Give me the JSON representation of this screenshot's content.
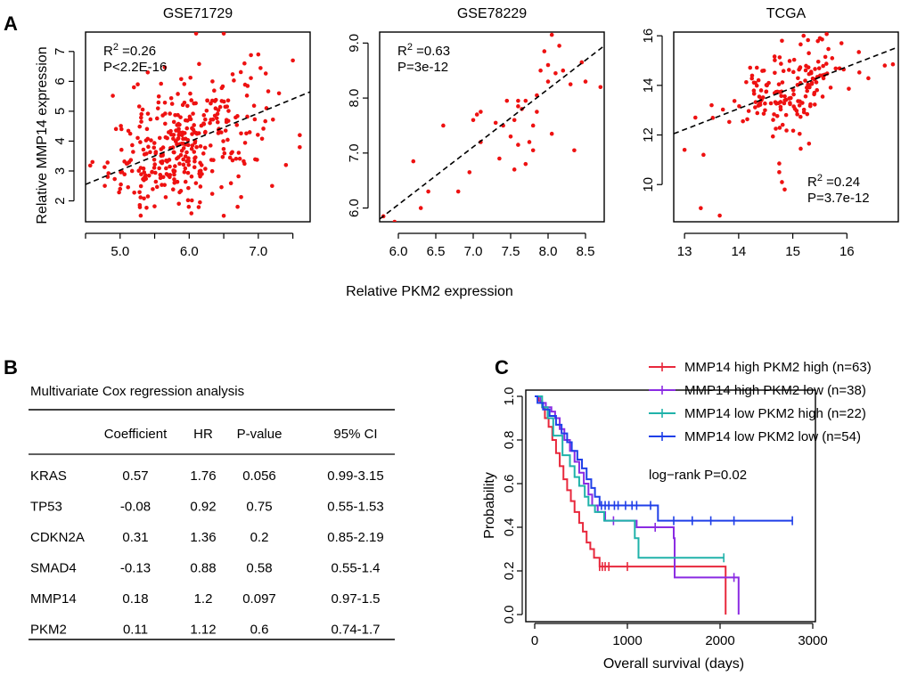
{
  "panel_labels": [
    "A",
    "B",
    "C"
  ],
  "panel_a": {
    "ylabel": "Relative MMP14 expression",
    "xlabel": "Relative PKM2 expression"
  },
  "chart_data": [
    {
      "type": "scatter",
      "title": "GSE71729",
      "xlabel": "Relative PKM2 expression",
      "ylabel": "Relative MMP14 expression",
      "xlim": [
        4.5,
        7.75
      ],
      "ylim": [
        1.3,
        7.65
      ],
      "xticks": [
        5.0,
        6.0,
        7.0
      ],
      "xtick_labels": [
        "5.0",
        "6.0",
        "7.0"
      ],
      "xticks_minor": [
        4.5,
        5.0,
        5.5,
        6.0,
        6.5,
        7.0,
        7.5
      ],
      "yticks": [
        2,
        3,
        4,
        5,
        6,
        7
      ],
      "ytick_labels": [
        "2",
        "3",
        "4",
        "5",
        "6",
        "7"
      ],
      "annotation_lines": [
        "R2 =0.26",
        "P<2.2E-16"
      ],
      "annotation_position": "top-left",
      "fit_line": {
        "x": [
          4.5,
          7.75
        ],
        "y": [
          2.55,
          5.65
        ]
      },
      "n_points": 357,
      "x_center": 5.95,
      "x_spread": 0.55,
      "y_spread": 0.95,
      "points": [
        [
          4.6,
          3.3
        ],
        [
          5.0,
          2.4
        ],
        [
          5.2,
          5.8
        ],
        [
          5.4,
          6.3
        ],
        [
          6.5,
          1.5
        ],
        [
          6.7,
          1.8
        ],
        [
          7.2,
          2.5
        ],
        [
          7.4,
          3.2
        ],
        [
          7.6,
          4.2
        ],
        [
          7.5,
          6.7
        ],
        [
          6.1,
          7.6
        ],
        [
          6.5,
          7.6
        ],
        [
          7.0,
          6.9
        ],
        [
          6.8,
          6.6
        ],
        [
          7.3,
          5.6
        ]
      ]
    },
    {
      "type": "scatter",
      "title": "GSE78229",
      "xlabel": "Relative PKM2 expression",
      "ylabel": "Relative MMP14 expression",
      "xlim": [
        5.75,
        8.75
      ],
      "ylim": [
        5.75,
        9.2
      ],
      "xticks": [
        6.0,
        6.5,
        7.0,
        7.5,
        8.0,
        8.5
      ],
      "xtick_labels": [
        "6.0",
        "6.5",
        "7.0",
        "7.5",
        "8.0",
        "8.5"
      ],
      "yticks": [
        6.0,
        7.0,
        8.0,
        9.0
      ],
      "ytick_labels": [
        "6.0",
        "7.0",
        "8.0",
        "9.0"
      ],
      "annotation_lines": [
        "R2 =0.63",
        "P=3e-12"
      ],
      "annotation_position": "top-left",
      "fit_line": {
        "x": [
          5.75,
          8.75
        ],
        "y": [
          5.8,
          8.95
        ]
      },
      "points": [
        [
          5.8,
          5.85
        ],
        [
          5.95,
          5.75
        ],
        [
          6.2,
          6.85
        ],
        [
          6.3,
          6.0
        ],
        [
          6.4,
          6.3
        ],
        [
          6.6,
          7.5
        ],
        [
          6.8,
          6.3
        ],
        [
          6.95,
          6.65
        ],
        [
          7.0,
          7.6
        ],
        [
          7.05,
          7.7
        ],
        [
          7.1,
          7.75
        ],
        [
          7.1,
          7.2
        ],
        [
          7.3,
          7.55
        ],
        [
          7.4,
          7.5
        ],
        [
          7.45,
          7.95
        ],
        [
          7.5,
          7.3
        ],
        [
          7.55,
          6.7
        ],
        [
          7.6,
          7.85
        ],
        [
          7.6,
          7.15
        ],
        [
          7.65,
          7.8
        ],
        [
          7.7,
          7.95
        ],
        [
          7.7,
          6.8
        ],
        [
          7.75,
          7.2
        ],
        [
          7.8,
          7.5
        ],
        [
          7.85,
          8.05
        ],
        [
          7.9,
          8.5
        ],
        [
          7.95,
          8.85
        ],
        [
          8.0,
          8.6
        ],
        [
          8.0,
          8.3
        ],
        [
          8.05,
          9.15
        ],
        [
          8.05,
          7.35
        ],
        [
          8.1,
          8.45
        ],
        [
          8.15,
          8.95
        ],
        [
          8.2,
          8.5
        ],
        [
          8.3,
          8.25
        ],
        [
          8.35,
          7.05
        ],
        [
          8.45,
          8.65
        ],
        [
          8.5,
          8.3
        ],
        [
          8.7,
          8.2
        ],
        [
          7.85,
          7.75
        ],
        [
          7.55,
          7.6
        ],
        [
          7.35,
          6.9
        ],
        [
          7.8,
          7.05
        ],
        [
          7.6,
          7.95
        ]
      ]
    },
    {
      "type": "scatter",
      "title": "TCGA",
      "xlabel": "Relative PKM2 expression",
      "ylabel": "Relative MMP14 expression",
      "xlim": [
        12.8,
        16.95
      ],
      "ylim": [
        8.5,
        16.15
      ],
      "xticks": [
        13,
        14,
        15,
        16
      ],
      "xtick_labels": [
        "13",
        "14",
        "15",
        "16"
      ],
      "yticks": [
        10,
        12,
        14,
        16
      ],
      "ytick_labels": [
        "10",
        "12",
        "14",
        "16"
      ],
      "annotation_lines": [
        "R2 =0.24",
        "P=3.7e-12"
      ],
      "annotation_position": "bottom-right",
      "fit_line": {
        "x": [
          12.8,
          16.95
        ],
        "y": [
          12.05,
          15.55
        ]
      },
      "n_points": 178,
      "x_center": 15.0,
      "x_spread": 0.55,
      "y_spread": 0.8,
      "points": [
        [
          13.0,
          11.4
        ],
        [
          13.35,
          11.2
        ],
        [
          13.3,
          9.05
        ],
        [
          13.65,
          8.75
        ],
        [
          14.75,
          10.5
        ],
        [
          14.8,
          10.1
        ],
        [
          14.85,
          9.8
        ],
        [
          14.75,
          10.85
        ],
        [
          15.3,
          11.65
        ],
        [
          13.2,
          12.7
        ],
        [
          13.5,
          13.2
        ],
        [
          16.7,
          14.8
        ],
        [
          16.85,
          14.85
        ],
        [
          15.9,
          15.7
        ],
        [
          15.5,
          15.9
        ],
        [
          15.2,
          16.0
        ],
        [
          14.8,
          15.8
        ]
      ]
    }
  ],
  "table_b": {
    "title": "Multivariate Cox regression analysis",
    "columns": [
      "",
      "Coefficient",
      "HR",
      "P-value",
      "95% CI"
    ],
    "rows": [
      [
        "KRAS",
        "0.57",
        "1.76",
        "0.056",
        "0.99-3.15"
      ],
      [
        "TP53",
        "-0.08",
        "0.92",
        "0.75",
        "0.55-1.53"
      ],
      [
        "CDKN2A",
        "0.31",
        "1.36",
        "0.2",
        "0.85-2.19"
      ],
      [
        "SMAD4",
        "-0.13",
        "0.88",
        "0.58",
        "0.55-1.4"
      ],
      [
        "MMP14",
        "0.18",
        "1.2",
        "0.097",
        "0.97-1.5"
      ],
      [
        "PKM2",
        "0.11",
        "1.12",
        "0.6",
        "0.74-1.7"
      ]
    ]
  },
  "survival_chart": {
    "type": "line",
    "title": "",
    "xlabel": "Overall survival (days)",
    "ylabel": "Probability",
    "xlim": [
      0,
      3000
    ],
    "ylim": [
      0,
      1.0
    ],
    "xticks": [
      0,
      1000,
      2000,
      3000
    ],
    "xtick_labels": [
      "0",
      "1000",
      "2000",
      "3000"
    ],
    "yticks": [
      0.0,
      0.2,
      0.4,
      0.6,
      0.8,
      1.0
    ],
    "ytick_labels": [
      "0.0",
      "0.2",
      "0.4",
      "0.6",
      "0.8",
      "1.0"
    ],
    "annotation": "log−rank P=0.02",
    "legend_position": "top-right",
    "series": [
      {
        "name": "MMP14 high PKM2 high (n=63)",
        "color": "#e8283c",
        "steps": [
          [
            0,
            1.0
          ],
          [
            40,
            0.98
          ],
          [
            80,
            0.95
          ],
          [
            110,
            0.9
          ],
          [
            150,
            0.86
          ],
          [
            190,
            0.8
          ],
          [
            230,
            0.74
          ],
          [
            270,
            0.68
          ],
          [
            310,
            0.62
          ],
          [
            350,
            0.57
          ],
          [
            390,
            0.52
          ],
          [
            430,
            0.47
          ],
          [
            480,
            0.42
          ],
          [
            520,
            0.38
          ],
          [
            560,
            0.33
          ],
          [
            600,
            0.3
          ],
          [
            640,
            0.26
          ],
          [
            700,
            0.22
          ],
          [
            2060,
            0.0
          ]
        ],
        "censors": [
          [
            700,
            0.22
          ],
          [
            730,
            0.22
          ],
          [
            760,
            0.22
          ],
          [
            800,
            0.22
          ],
          [
            1000,
            0.22
          ]
        ]
      },
      {
        "name": "MMP14 high PKM2 low (n=38)",
        "color": "#8a2be2",
        "steps": [
          [
            0,
            1.0
          ],
          [
            60,
            0.97
          ],
          [
            120,
            0.95
          ],
          [
            180,
            0.93
          ],
          [
            220,
            0.9
          ],
          [
            270,
            0.85
          ],
          [
            320,
            0.8
          ],
          [
            380,
            0.75
          ],
          [
            430,
            0.7
          ],
          [
            480,
            0.65
          ],
          [
            530,
            0.6
          ],
          [
            580,
            0.55
          ],
          [
            620,
            0.5
          ],
          [
            680,
            0.47
          ],
          [
            760,
            0.43
          ],
          [
            1100,
            0.4
          ],
          [
            1500,
            0.35
          ],
          [
            1510,
            0.17
          ],
          [
            2200,
            0.0
          ]
        ],
        "censors": [
          [
            850,
            0.43
          ],
          [
            1300,
            0.4
          ],
          [
            2150,
            0.17
          ]
        ]
      },
      {
        "name": "MMP14 low PKM2 high (n=22)",
        "color": "#20b2aa",
        "steps": [
          [
            0,
            1.0
          ],
          [
            80,
            0.95
          ],
          [
            140,
            0.9
          ],
          [
            200,
            0.82
          ],
          [
            300,
            0.73
          ],
          [
            380,
            0.68
          ],
          [
            430,
            0.63
          ],
          [
            480,
            0.59
          ],
          [
            540,
            0.54
          ],
          [
            580,
            0.5
          ],
          [
            650,
            0.47
          ],
          [
            750,
            0.43
          ],
          [
            1080,
            0.35
          ],
          [
            1120,
            0.26
          ],
          [
            2040,
            0.26
          ]
        ],
        "censors": [
          [
            2040,
            0.26
          ]
        ]
      },
      {
        "name": "MMP14 low PKM2 low (n=54)",
        "color": "#1f3fe8",
        "steps": [
          [
            0,
            1.0
          ],
          [
            30,
            0.97
          ],
          [
            90,
            0.94
          ],
          [
            160,
            0.91
          ],
          [
            230,
            0.87
          ],
          [
            290,
            0.83
          ],
          [
            350,
            0.79
          ],
          [
            400,
            0.75
          ],
          [
            460,
            0.71
          ],
          [
            510,
            0.67
          ],
          [
            560,
            0.62
          ],
          [
            610,
            0.58
          ],
          [
            650,
            0.54
          ],
          [
            700,
            0.5
          ],
          [
            1330,
            0.43
          ],
          [
            2780,
            0.43
          ]
        ],
        "censors": [
          [
            720,
            0.5
          ],
          [
            760,
            0.5
          ],
          [
            800,
            0.5
          ],
          [
            860,
            0.5
          ],
          [
            900,
            0.5
          ],
          [
            980,
            0.5
          ],
          [
            1050,
            0.5
          ],
          [
            1100,
            0.5
          ],
          [
            1250,
            0.5
          ],
          [
            1500,
            0.43
          ],
          [
            1700,
            0.43
          ],
          [
            1900,
            0.43
          ],
          [
            2150,
            0.43
          ],
          [
            2780,
            0.43
          ]
        ]
      }
    ]
  }
}
